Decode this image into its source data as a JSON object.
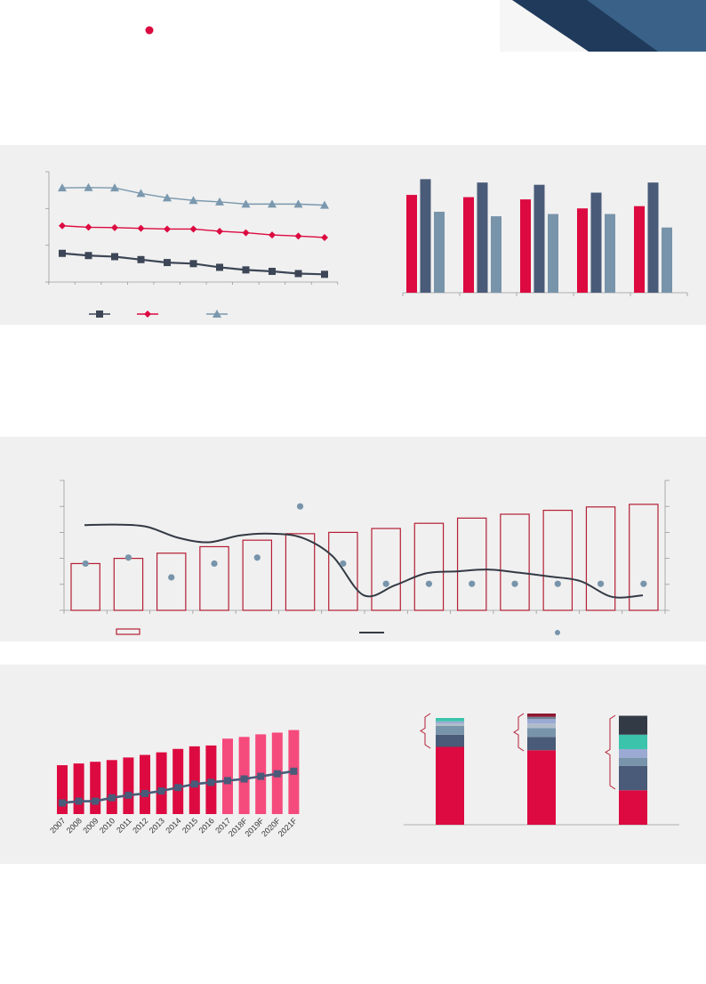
{
  "page": {
    "header_bullet_color": "#dc0a40",
    "corner_dark": "#1f3a5a",
    "corner_light": "#3a6288"
  },
  "colors": {
    "red": "#dc0a40",
    "navy": "#495b78",
    "dark": "#323a46",
    "steel": "#7894aa",
    "pink": "#f54a7c",
    "outline": "#b41e34"
  },
  "chart_data": [
    {
      "id": "chart1",
      "type": "line",
      "x": [
        1,
        2,
        3,
        4,
        5,
        6,
        7,
        8,
        9,
        10,
        11
      ],
      "series": [
        {
          "marker": "triangle",
          "color": "#7a98ae",
          "values": [
            2.56,
            2.57,
            2.56,
            2.41,
            2.29,
            2.22,
            2.18,
            2.12,
            2.12,
            2.12,
            2.09
          ]
        },
        {
          "marker": "diamond",
          "color": "#dc0a40",
          "values": [
            1.53,
            1.49,
            1.48,
            1.46,
            1.44,
            1.44,
            1.38,
            1.34,
            1.28,
            1.25,
            1.21
          ]
        },
        {
          "marker": "square",
          "color": "#3c4656",
          "values": [
            0.78,
            0.72,
            0.69,
            0.61,
            0.53,
            0.5,
            0.4,
            0.33,
            0.29,
            0.23,
            0.21
          ]
        }
      ],
      "ylim": [
        0,
        3
      ],
      "grid": false,
      "legend": "bottom-left"
    },
    {
      "id": "chart2",
      "type": "bar",
      "categories": [
        "",
        "",
        "",
        "",
        ""
      ],
      "series": [
        {
          "color": "#dc0a40",
          "values": [
            87,
            85,
            83,
            75,
            77
          ]
        },
        {
          "color": "#495b78",
          "values": [
            101,
            98,
            96,
            89,
            98
          ]
        },
        {
          "color": "#7894aa",
          "values": [
            72,
            68,
            70,
            70,
            58
          ]
        }
      ],
      "ylim": [
        0,
        110
      ],
      "grid": false
    },
    {
      "id": "chart3",
      "type": "bar",
      "categories": [
        "",
        "",
        "",
        "",
        "",
        "",
        "",
        "",
        "",
        "",
        "",
        "",
        "",
        ""
      ],
      "bars": [
        1.8,
        2.0,
        2.2,
        2.45,
        2.7,
        2.95,
        3.0,
        3.15,
        3.35,
        3.55,
        3.7,
        3.85,
        3.98,
        4.08
      ],
      "line": [
        3.28,
        3.3,
        3.22,
        2.8,
        2.62,
        2.88,
        2.95,
        2.8,
        2.08,
        0.58,
        0.96,
        1.42,
        1.5,
        1.57,
        1.45,
        1.3,
        1.12,
        0.52,
        0.58
      ],
      "dots": [
        1.8,
        2.03,
        1.27,
        1.8,
        2.03,
        4.0,
        1.8,
        1.02,
        1.02,
        1.02,
        1.02,
        1.02,
        1.02,
        1.02
      ],
      "ylim": [
        0,
        5
      ],
      "grid": false,
      "legend": "bottom"
    },
    {
      "id": "chart4",
      "type": "bar",
      "categories": [
        "2007",
        "2008",
        "2009",
        "2010",
        "2011",
        "2012",
        "2013",
        "2014",
        "2015",
        "2016",
        "2017",
        "2018F",
        "2019F",
        "2020F",
        "2021F"
      ],
      "bars": [
        57,
        59,
        61,
        63,
        66,
        69,
        72,
        76,
        79,
        80,
        88,
        90,
        93,
        95,
        98
      ],
      "line": [
        13,
        15,
        15,
        19,
        22,
        24,
        27,
        31,
        35,
        37,
        39,
        41,
        44,
        47,
        50
      ],
      "ylim": [
        0,
        110
      ],
      "grid": false
    },
    {
      "id": "chart5",
      "type": "bar",
      "categories": [
        "",
        "",
        ""
      ],
      "stacks": [
        [
          {
            "color": "#dc0a40",
            "value": 70
          },
          {
            "color": "#495b78",
            "value": 11
          },
          {
            "color": "#7894aa",
            "value": 8
          },
          {
            "color": "#b0bccb",
            "value": 2
          },
          {
            "color": "#9baad3",
            "value": 2
          },
          {
            "color": "#3cc3ac",
            "value": 3
          }
        ],
        [
          {
            "color": "#dc0a40",
            "value": 67
          },
          {
            "color": "#495b78",
            "value": 12
          },
          {
            "color": "#7894aa",
            "value": 8
          },
          {
            "color": "#b0bccb",
            "value": 4
          },
          {
            "color": "#9baad3",
            "value": 4
          },
          {
            "color": "#6e8094",
            "value": 2
          },
          {
            "color": "#8c1a32",
            "value": 3
          }
        ],
        [
          {
            "color": "#dc0a40",
            "value": 31
          },
          {
            "color": "#495b78",
            "value": 22
          },
          {
            "color": "#7894aa",
            "value": 7
          },
          {
            "color": "#9baad3",
            "value": 8
          },
          {
            "color": "#3cc3ac",
            "value": 13
          },
          {
            "color": "#323a46",
            "value": 17
          }
        ]
      ],
      "ylim": [
        0,
        100
      ],
      "grid": false
    }
  ]
}
